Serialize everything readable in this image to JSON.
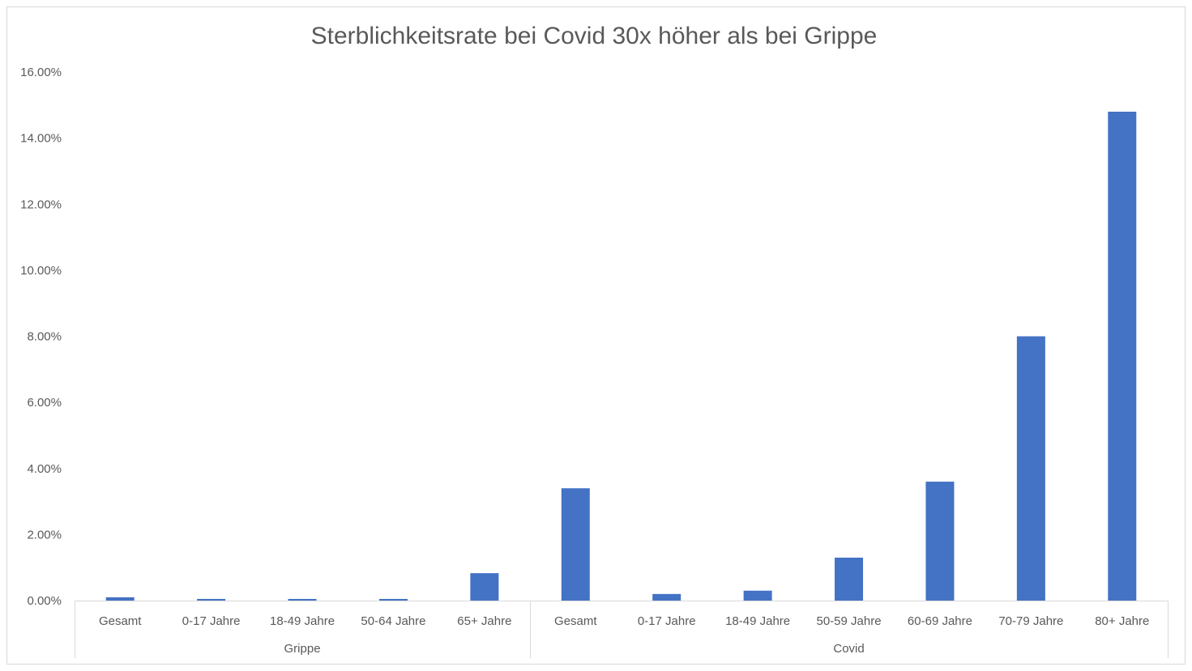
{
  "chart_data": {
    "type": "bar",
    "title": "Sterblichkeitsrate bei Covid 30x höher als bei Grippe",
    "xlabel": "",
    "ylabel": "",
    "ylim": [
      0,
      16
    ],
    "y_ticks": [
      "0.00%",
      "2.00%",
      "4.00%",
      "6.00%",
      "8.00%",
      "10.00%",
      "12.00%",
      "14.00%",
      "16.00%"
    ],
    "grid": false,
    "legend": "none",
    "bar_color": "#4472c4",
    "groups": [
      {
        "label": "Grippe",
        "categories": [
          "Gesamt",
          "0-17 Jahre",
          "18-49 Jahre",
          "50-64 Jahre",
          "65+ Jahre"
        ],
        "values": [
          0.1,
          0.05,
          0.05,
          0.05,
          0.83
        ]
      },
      {
        "label": "Covid",
        "categories": [
          "Gesamt",
          "0-17 Jahre",
          "18-49 Jahre",
          "50-59 Jahre",
          "60-69 Jahre",
          "70-79 Jahre",
          "80+ Jahre"
        ],
        "values": [
          3.4,
          0.2,
          0.3,
          1.3,
          3.6,
          8.0,
          14.8
        ]
      }
    ]
  }
}
